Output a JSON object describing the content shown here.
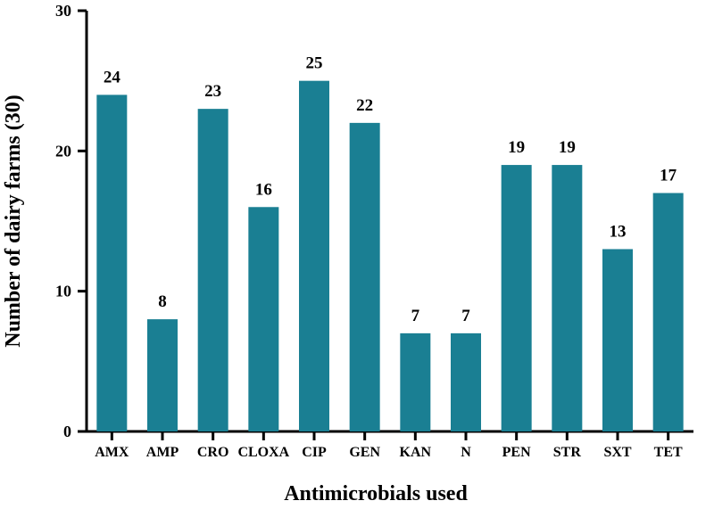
{
  "chart_data": {
    "type": "bar",
    "title": "",
    "xlabel": "Antimicrobials used",
    "ylabel": "Number of dairy farms (30)",
    "categories": [
      "AMX",
      "AMP",
      "CRO",
      "CLOXA",
      "CIP",
      "GEN",
      "KAN",
      "N",
      "PEN",
      "STR",
      "SXT",
      "TET"
    ],
    "values": [
      24,
      8,
      23,
      16,
      25,
      22,
      7,
      7,
      19,
      19,
      13,
      17
    ],
    "data_labels": [
      "24",
      "8",
      "23",
      "16",
      "25",
      "22",
      "7",
      "7",
      "19",
      "19",
      "13",
      "17"
    ],
    "ylim": [
      0,
      30
    ],
    "yticks": [
      0,
      10,
      20,
      30
    ],
    "ytick_labels": [
      "0",
      "10",
      "20",
      "30"
    ],
    "grid": false,
    "colors": {
      "bar": "#1a7f93",
      "axis": "#000000",
      "text": "#000000"
    }
  }
}
